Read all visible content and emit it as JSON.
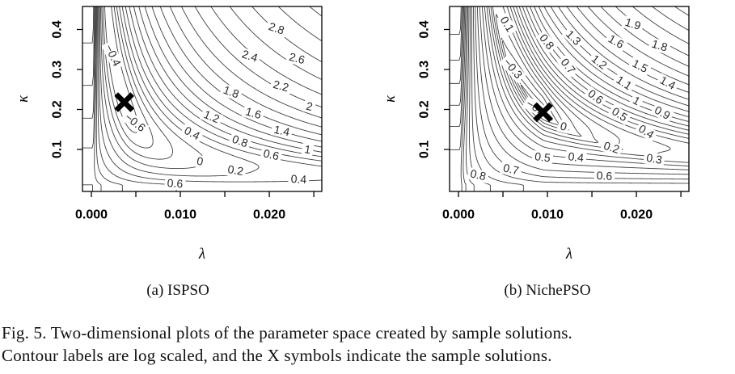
{
  "figure": {
    "caption_line1": "Fig. 5. Two-dimensional plots of the parameter space created by sample solutions.",
    "caption_line2": "Contour labels are log scaled, and the X symbols indicate the sample solutions."
  },
  "colors": {
    "background": "#ffffff",
    "contour_line": "#3f3f3f",
    "axis": "#000000",
    "contour_label": "#2a2a2a",
    "sample_marker": "#000000"
  },
  "chart_data": [
    {
      "type": "contour",
      "id": "a",
      "caption": "(a) ISPSO",
      "xlabel": "λ",
      "ylabel": "κ",
      "xlim": [
        -0.001,
        0.0259
      ],
      "ylim": [
        -0.0051,
        0.4576
      ],
      "xticks": [
        {
          "value": 0.0,
          "label": "0.000"
        },
        {
          "value": 0.005,
          "label": ""
        },
        {
          "value": 0.01,
          "label": "0.010"
        },
        {
          "value": 0.015,
          "label": ""
        },
        {
          "value": 0.02,
          "label": "0.020"
        },
        {
          "value": 0.025,
          "label": ""
        }
      ],
      "yticks": [
        {
          "value": 0.1,
          "label": "0.1"
        },
        {
          "value": 0.2,
          "label": "0.2"
        },
        {
          "value": 0.3,
          "label": "0.3"
        },
        {
          "value": 0.4,
          "label": "0.4"
        }
      ],
      "contour_levels": {
        "min": -0.6,
        "max": 3.4,
        "step": 0.2
      },
      "log_scaled": true,
      "sample_solution": {
        "lambda": 0.0037,
        "kappa": 0.218
      },
      "contour_labels": [
        {
          "text": "−0.4",
          "lambda": 0.0024,
          "kappa": 0.335,
          "angle": -65
        },
        {
          "text": "−0.6",
          "lambda": 0.0049,
          "kappa": 0.167,
          "angle": -38
        },
        {
          "text": "0",
          "lambda": 0.0122,
          "kappa": 0.0697,
          "angle": -11
        },
        {
          "text": "0.2",
          "lambda": 0.0162,
          "kappa": 0.047,
          "angle": -9
        },
        {
          "text": "0.4",
          "lambda": 0.0113,
          "kappa": 0.14,
          "angle": -27
        },
        {
          "text": "0.4",
          "lambda": 0.0233,
          "kappa": 0.0248,
          "angle": -3
        },
        {
          "text": "0.6",
          "lambda": 0.0202,
          "kappa": 0.0859,
          "angle": -13
        },
        {
          "text": "0.6",
          "lambda": 0.0094,
          "kappa": 0.0143,
          "angle": -4
        },
        {
          "text": "0.8",
          "lambda": 0.0167,
          "kappa": 0.12,
          "angle": -20
        },
        {
          "text": "1",
          "lambda": 0.0243,
          "kappa": 0.099,
          "angle": -9
        },
        {
          "text": "1.2",
          "lambda": 0.0135,
          "kappa": 0.181,
          "angle": -22
        },
        {
          "text": "1.4",
          "lambda": 0.0214,
          "kappa": 0.146,
          "angle": -12
        },
        {
          "text": "1.6",
          "lambda": 0.0182,
          "kappa": 0.19,
          "angle": -16
        },
        {
          "text": "1.8",
          "lambda": 0.0157,
          "kappa": 0.243,
          "angle": -20
        },
        {
          "text": "2",
          "lambda": 0.0245,
          "kappa": 0.207,
          "angle": -12
        },
        {
          "text": "2.2",
          "lambda": 0.0213,
          "kappa": 0.258,
          "angle": -15
        },
        {
          "text": "2.4",
          "lambda": 0.0178,
          "kappa": 0.333,
          "angle": -18
        },
        {
          "text": "2.6",
          "lambda": 0.0231,
          "kappa": 0.327,
          "angle": -14
        },
        {
          "text": "2.8",
          "lambda": 0.0208,
          "kappa": 0.402,
          "angle": -19
        }
      ]
    },
    {
      "type": "contour",
      "id": "b",
      "caption": "(b) NichePSO",
      "xlabel": "λ",
      "ylabel": "κ",
      "xlim": [
        -0.001,
        0.0259
      ],
      "ylim": [
        -0.0051,
        0.4576
      ],
      "xticks": [
        {
          "value": 0.0,
          "label": "0.000"
        },
        {
          "value": 0.005,
          "label": ""
        },
        {
          "value": 0.01,
          "label": "0.010"
        },
        {
          "value": 0.015,
          "label": ""
        },
        {
          "value": 0.02,
          "label": "0.020"
        },
        {
          "value": 0.025,
          "label": ""
        }
      ],
      "yticks": [
        {
          "value": 0.1,
          "label": "0.1"
        },
        {
          "value": 0.2,
          "label": "0.2"
        },
        {
          "value": 0.3,
          "label": "0.3"
        },
        {
          "value": 0.4,
          "label": "0.4"
        }
      ],
      "contour_levels": {
        "min": -0.4,
        "max": 2.4,
        "step": 0.1
      },
      "log_scaled": true,
      "sample_solution": {
        "lambda": 0.0095,
        "kappa": 0.193
      },
      "contour_labels": [
        {
          "text": "0.1",
          "lambda": 0.00545,
          "kappa": 0.413,
          "angle": -58
        },
        {
          "text": "−0.3",
          "lambda": 0.0061,
          "kappa": 0.302,
          "angle": -50
        },
        {
          "text": "−0.4",
          "lambda": 0.0088,
          "kappa": 0.203,
          "angle": -30
        },
        {
          "text": "0",
          "lambda": 0.0118,
          "kappa": 0.157,
          "angle": -15
        },
        {
          "text": "0.2",
          "lambda": 0.0172,
          "kappa": 0.104,
          "angle": -18
        },
        {
          "text": "0.3",
          "lambda": 0.022,
          "kappa": 0.0758,
          "angle": -10
        },
        {
          "text": "0.4",
          "lambda": 0.0211,
          "kappa": 0.144,
          "angle": -32
        },
        {
          "text": "0.4",
          "lambda": 0.0132,
          "kappa": 0.0798,
          "angle": -7
        },
        {
          "text": "0.5",
          "lambda": 0.0181,
          "kappa": 0.187,
          "angle": -33
        },
        {
          "text": "0.5",
          "lambda": 0.00945,
          "kappa": 0.0798,
          "angle": -7
        },
        {
          "text": "0.6",
          "lambda": 0.0154,
          "kappa": 0.231,
          "angle": -38
        },
        {
          "text": "0.6",
          "lambda": 0.0164,
          "kappa": 0.0333,
          "angle": -3
        },
        {
          "text": "0.7",
          "lambda": 0.0123,
          "kappa": 0.308,
          "angle": -52
        },
        {
          "text": "0.7",
          "lambda": 0.0059,
          "kappa": 0.0495,
          "angle": -13
        },
        {
          "text": "0.8",
          "lambda": 0.0099,
          "kappa": 0.369,
          "angle": -52
        },
        {
          "text": "0.8",
          "lambda": 0.0022,
          "kappa": 0.0354,
          "angle": -13
        },
        {
          "text": "0.9",
          "lambda": 0.0229,
          "kappa": 0.191,
          "angle": -28
        },
        {
          "text": "1",
          "lambda": 0.02,
          "kappa": 0.221,
          "angle": -30
        },
        {
          "text": "1.1",
          "lambda": 0.0186,
          "kappa": 0.266,
          "angle": -33
        },
        {
          "text": "1.2",
          "lambda": 0.0158,
          "kappa": 0.318,
          "angle": -38
        },
        {
          "text": "1.3",
          "lambda": 0.0129,
          "kappa": 0.379,
          "angle": -45
        },
        {
          "text": "1.4",
          "lambda": 0.0235,
          "kappa": 0.266,
          "angle": -28
        },
        {
          "text": "1.5",
          "lambda": 0.0204,
          "kappa": 0.308,
          "angle": -28
        },
        {
          "text": "1.6",
          "lambda": 0.0177,
          "kappa": 0.369,
          "angle": -30
        },
        {
          "text": "1.8",
          "lambda": 0.0226,
          "kappa": 0.359,
          "angle": -17
        },
        {
          "text": "1.9",
          "lambda": 0.0196,
          "kappa": 0.413,
          "angle": -17
        }
      ]
    }
  ]
}
